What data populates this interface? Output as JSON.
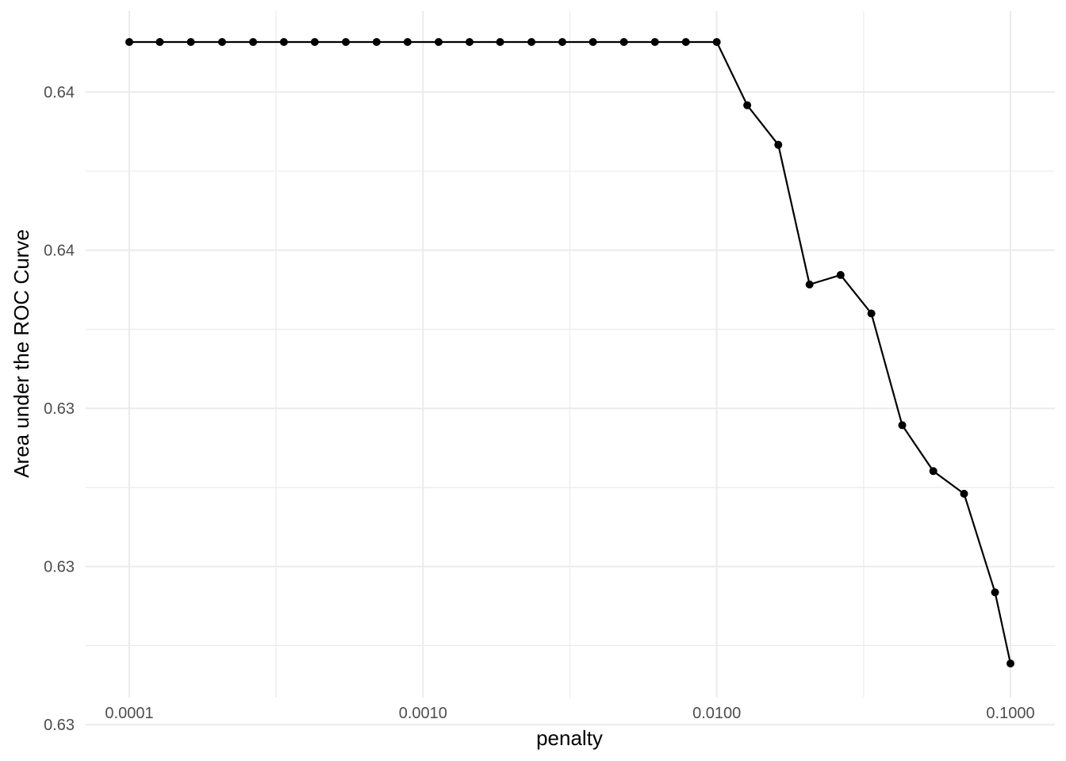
{
  "chart_data": {
    "type": "line",
    "title": "",
    "xlabel": "penalty",
    "ylabel": "Area under the ROC Curve",
    "x_scale": "log10",
    "xlim": [
      0.0001,
      0.1
    ],
    "ylim": [
      0.6303,
      0.6422
    ],
    "grid": true,
    "legend": "none",
    "x_ticks": [
      {
        "value": 0.0001,
        "label": "0.0001"
      },
      {
        "value": 0.001,
        "label": "0.0010"
      },
      {
        "value": 0.01,
        "label": "0.0100"
      },
      {
        "value": 0.1,
        "label": "0.1000"
      }
    ],
    "y_ticks": [
      {
        "value": 0.6413,
        "label": "0.64"
      },
      {
        "value": 0.6383,
        "label": "0.64"
      },
      {
        "value": 0.6353,
        "label": "0.63"
      },
      {
        "value": 0.6323,
        "label": "0.63"
      },
      {
        "value": 0.6293,
        "label": "0.63"
      }
    ],
    "series": [
      {
        "color": "#000000",
        "x": [
          0.0001,
          0.000127,
          0.000162,
          0.000207,
          0.000264,
          0.000336,
          0.000428,
          0.000546,
          0.000695,
          0.000886,
          0.00113,
          0.00144,
          0.00183,
          0.00234,
          0.00298,
          0.00379,
          0.00483,
          0.00616,
          0.00785,
          0.01,
          0.0127,
          0.0162,
          0.0207,
          0.0264,
          0.0336,
          0.0428,
          0.0546,
          0.0695,
          0.0886,
          0.1
        ],
        "y": [
          0.64225,
          0.64225,
          0.64225,
          0.64225,
          0.64225,
          0.64225,
          0.64225,
          0.64225,
          0.64225,
          0.64225,
          0.64225,
          0.64225,
          0.64225,
          0.64225,
          0.64225,
          0.64225,
          0.64225,
          0.64225,
          0.64225,
          0.64225,
          0.64105,
          0.6403,
          0.63765,
          0.63783,
          0.6371,
          0.63498,
          0.63411,
          0.63368,
          0.63181,
          0.63046
        ]
      }
    ]
  }
}
